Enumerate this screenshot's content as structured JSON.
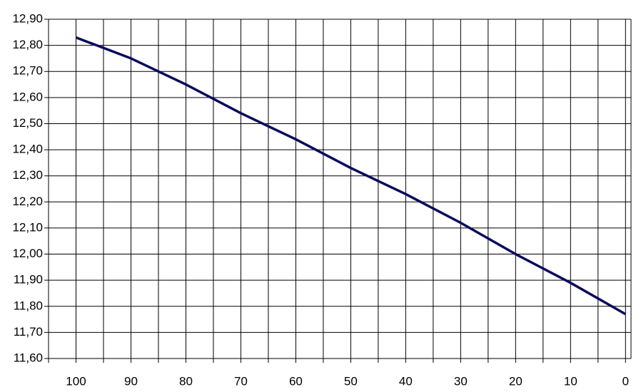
{
  "chart_data": {
    "type": "line",
    "x": [
      100,
      90,
      80,
      70,
      60,
      50,
      40,
      30,
      20,
      10,
      0
    ],
    "series": [
      {
        "color": "#0a0a5e",
        "values": [
          12.83,
          12.75,
          12.65,
          12.54,
          12.44,
          12.33,
          12.23,
          12.12,
          12.0,
          11.89,
          11.77
        ]
      }
    ],
    "xlim": [
      105,
      -1
    ],
    "xticks": [
      100,
      90,
      80,
      70,
      60,
      50,
      40,
      30,
      20,
      10,
      0
    ],
    "xminor": [
      95,
      85,
      75,
      65,
      55,
      45,
      35,
      25,
      15,
      5
    ],
    "ylim": [
      11.6,
      12.9
    ],
    "yticks": [
      {
        "value": 11.6,
        "label": "11,60"
      },
      {
        "value": 11.7,
        "label": "11,70"
      },
      {
        "value": 11.8,
        "label": "11,80"
      },
      {
        "value": 11.9,
        "label": "11,90"
      },
      {
        "value": 12.0,
        "label": "12,00"
      },
      {
        "value": 12.1,
        "label": "12,10"
      },
      {
        "value": 12.2,
        "label": "12,20"
      },
      {
        "value": 12.3,
        "label": "12,30"
      },
      {
        "value": 12.4,
        "label": "12,40"
      },
      {
        "value": 12.5,
        "label": "12,50"
      },
      {
        "value": 12.6,
        "label": "12,60"
      },
      {
        "value": 12.7,
        "label": "12,70"
      },
      {
        "value": 12.8,
        "label": "12,80"
      },
      {
        "value": 12.9,
        "label": "12,90"
      }
    ],
    "grid": true
  }
}
